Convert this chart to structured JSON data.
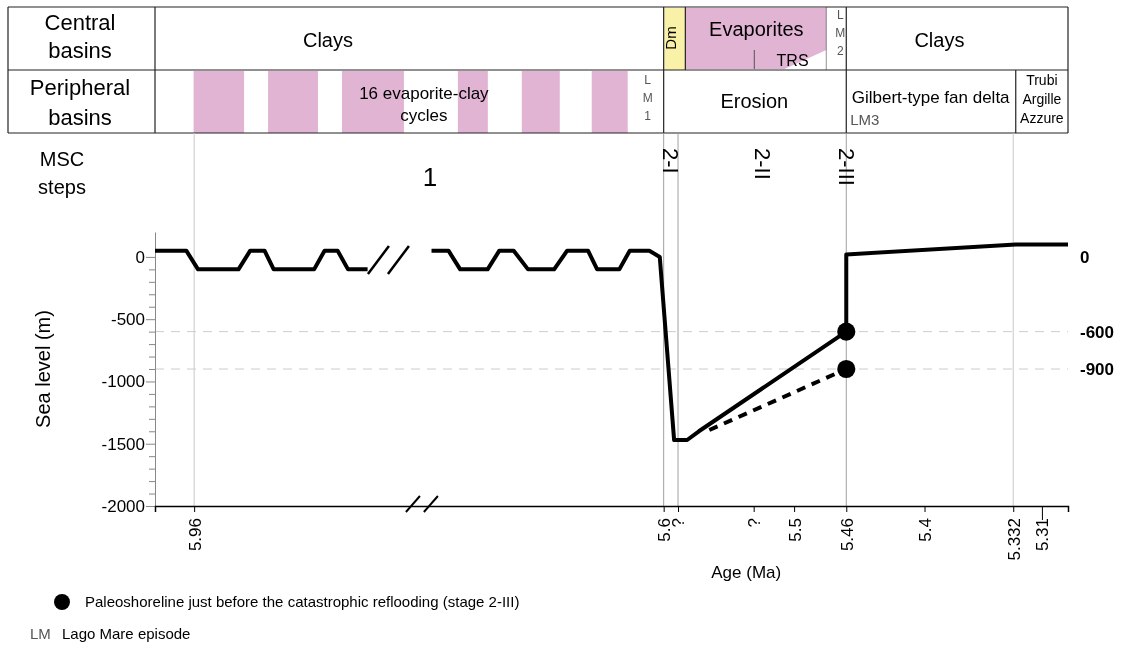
{
  "chart_data": {
    "type": "line",
    "xlabel": "Age (Ma)",
    "ylabel": "Sea level (m)",
    "xlim": [
      5.99,
      5.29
    ],
    "ylim": [
      -2000,
      200
    ],
    "xticks": [
      5.96,
      5.6,
      {
        "value": 5.589,
        "label": "?"
      },
      {
        "value": 5.531,
        "label": "?"
      },
      5.5,
      5.46,
      5.4,
      5.332,
      5.31
    ],
    "yticks": [
      0,
      {
        "value": -100,
        "label": null
      },
      {
        "value": -200,
        "label": null
      },
      {
        "value": -300,
        "label": null
      },
      {
        "value": -400,
        "label": null
      },
      -500,
      {
        "value": -600,
        "label": null
      },
      {
        "value": -700,
        "label": null
      },
      {
        "value": -800,
        "label": null
      },
      {
        "value": -900,
        "label": null
      },
      -1000,
      {
        "value": -1100,
        "label": null
      },
      {
        "value": -1200,
        "label": null
      },
      {
        "value": -1300,
        "label": null
      },
      {
        "value": -1400,
        "label": null
      },
      -1500,
      {
        "value": -1600,
        "label": null
      },
      {
        "value": -1700,
        "label": null
      },
      {
        "value": -1800,
        "label": null
      },
      {
        "value": -1900,
        "label": null
      },
      -2000
    ],
    "y2lim": [
      -2000,
      200
    ],
    "y2ticks": [
      0,
      -600,
      -900
    ],
    "series": [
      {
        "type": "line",
        "color": "#000000",
        "line_style": "solid",
        "x": [
          5.99,
          5.966,
          5.957,
          5.926,
          5.917,
          5.906,
          5.899,
          5.868,
          5.86,
          5.85,
          5.842,
          5.827,
          5.8,
          5.778,
          5.765,
          5.756,
          5.735,
          5.726,
          5.715,
          5.704,
          5.684,
          5.674,
          5.658,
          5.651,
          5.634,
          5.626,
          5.611,
          5.603,
          5.592,
          5.582,
          5.573,
          5.46,
          5.46,
          5.33,
          5.29
        ],
        "values": [
          50,
          50,
          -100,
          -100,
          50,
          50,
          -100,
          -100,
          50,
          50,
          -100,
          -100,
          null,
          50,
          50,
          -100,
          -100,
          50,
          50,
          -100,
          -100,
          50,
          50,
          -100,
          -100,
          50,
          50,
          0,
          -1470,
          -1470,
          -1400,
          -600,
          20,
          100,
          100
        ]
      },
      {
        "type": "line",
        "color": "#000000",
        "line_style": "dashed",
        "x": [
          5.565,
          5.46
        ],
        "values": [
          -1390,
          -900
        ]
      },
      {
        "type": "scatter",
        "name": "Paleoshoreline just before the catastrophic reflooding (stage 2-III)",
        "color": "#000000",
        "marker": "circle",
        "x": [
          5.46,
          5.46
        ],
        "values": [
          -600,
          -900
        ]
      }
    ],
    "ref_lines": [
      {
        "axis": "x",
        "value": 5.96,
        "color": "#c8c8c8"
      },
      {
        "axis": "x",
        "value": 5.6,
        "color": "#a0a0a0"
      },
      {
        "axis": "x",
        "value": 5.589,
        "color": "#a0a0a0"
      },
      {
        "axis": "x",
        "value": 5.46,
        "color": "#a0a0a0"
      },
      {
        "axis": "x",
        "value": 5.332,
        "color": "#c8c8c8"
      },
      {
        "axis": "y",
        "value": -600,
        "color": "#cccccc",
        "line_style": "dashed"
      },
      {
        "axis": "y",
        "value": -900,
        "color": "#cccccc",
        "line_style": "dashed"
      }
    ],
    "legend": "bottom left",
    "annotations": [
      "Central basins",
      "Clays",
      "Dm",
      "Evaporites",
      "TRS",
      "LM2",
      "Clays",
      "Peripheral basins",
      "16 evaporite-clay cycles",
      "LM1",
      "Erosion",
      "Gilbert-type fan delta",
      "LM3",
      "Trubi Argille Azzure",
      "MSC steps",
      "1",
      "2-I",
      "2-II",
      "2-III",
      "LM",
      "Lago Mare episode"
    ]
  }
}
